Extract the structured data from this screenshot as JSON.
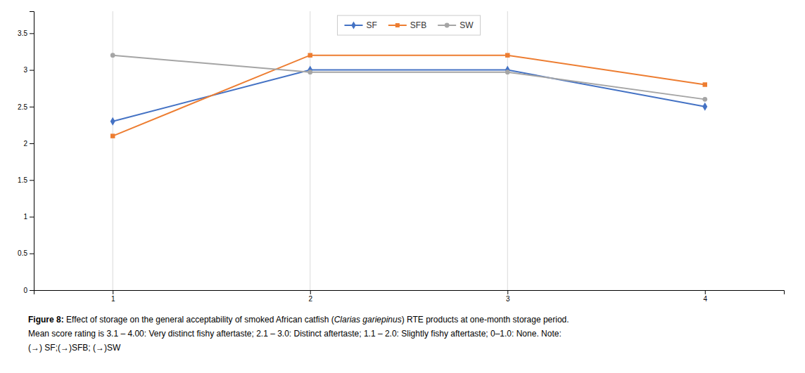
{
  "chart_data": {
    "type": "line",
    "x": [
      1,
      2,
      3,
      4
    ],
    "series": [
      {
        "name": "SF",
        "color": "#4472C4",
        "marker": "diamond",
        "values": [
          2.3,
          3.0,
          3.0,
          2.5
        ]
      },
      {
        "name": "SFB",
        "color": "#ED7D31",
        "marker": "square",
        "values": [
          2.1,
          3.2,
          3.2,
          2.8
        ]
      },
      {
        "name": "SW",
        "color": "#A5A5A5",
        "marker": "circle",
        "values": [
          3.2,
          2.97,
          2.97,
          2.6
        ]
      }
    ],
    "xlim": [
      0.6,
      4.4
    ],
    "xticks": [
      1,
      2,
      3,
      4
    ],
    "ylim": [
      0,
      3.8
    ],
    "yticks": [
      0,
      0.5,
      1,
      1.5,
      2,
      2.5,
      3,
      3.5
    ],
    "vlines": [
      1,
      2,
      3
    ],
    "legend": "top",
    "caption": [
      [
        "Figure 8: ",
        "Effect of storage on the general acceptability of smoked African catfish (",
        "Clarias gariepinus",
        ") RTE products at one-month storage period."
      ],
      "Mean score rating is 3.1 – 4.00: Very distinct fishy aftertaste; 2.1 – 3.0: Distinct aftertaste; 1.1 – 2.0: Slightly fishy aftertaste; 0–1.0: None. Note:",
      "(→) SF;(→)SFB; (→)SW"
    ]
  }
}
